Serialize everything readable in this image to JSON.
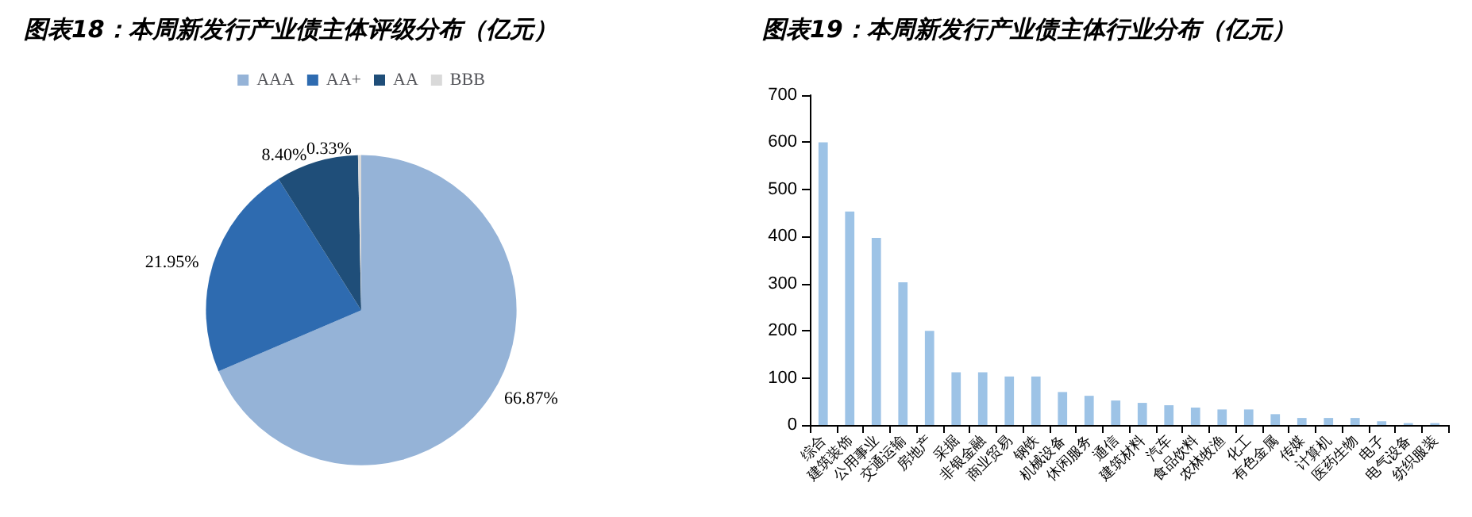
{
  "chart_data": [
    {
      "type": "pie",
      "title": "图表18：本周新发行产业债主体评级分布（亿元）",
      "categories": [
        "AAA",
        "AA+",
        "AA",
        "BBB"
      ],
      "values": [
        66.87,
        21.95,
        8.4,
        0.33
      ],
      "colors": [
        "#95b3d7",
        "#2e6bb0",
        "#1f4e79",
        "#d9d9d9"
      ],
      "value_labels": [
        "66.87%",
        "21.95%",
        "8.40%",
        "0.33%"
      ],
      "legend": "top"
    },
    {
      "type": "bar",
      "title": "图表19：本周新发行产业债主体行业分布（亿元）",
      "categories": [
        "综合",
        "建筑装饰",
        "公用事业",
        "交通运输",
        "房地产",
        "采掘",
        "非银金融",
        "商业贸易",
        "钢铁",
        "机械设备",
        "休闲服务",
        "通信",
        "建筑材料",
        "汽车",
        "食品饮料",
        "农林牧渔",
        "化工",
        "有色金属",
        "传媒",
        "计算机",
        "医药生物",
        "电子",
        "电气设备",
        "纺织服装"
      ],
      "values": [
        600,
        453,
        397,
        303,
        200,
        112,
        112,
        103,
        103,
        70,
        62,
        52,
        47,
        42,
        37,
        33,
        33,
        23,
        15,
        15,
        15,
        8,
        4,
        4
      ],
      "color": "#9dc3e6",
      "ylim": [
        0,
        700
      ],
      "yticks": [
        0,
        100,
        200,
        300,
        400,
        500,
        600,
        700
      ],
      "grid": false,
      "legend": false
    }
  ]
}
